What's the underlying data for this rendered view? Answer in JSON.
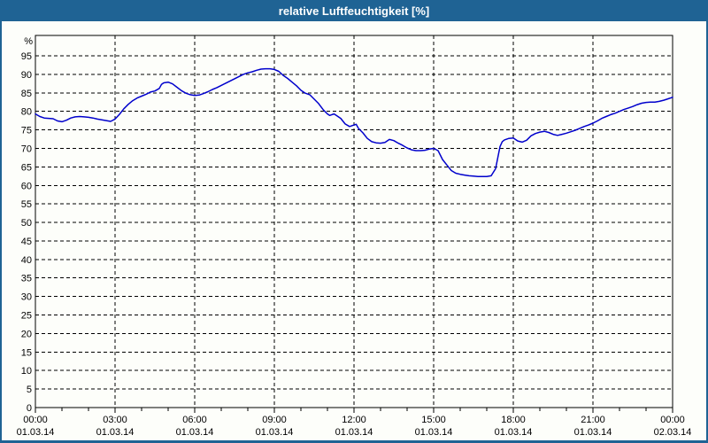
{
  "window": {
    "title": "relative Luftfeuchtigkeit [%]",
    "titlebar_color": "#1f6394",
    "border_color": "#1f6394",
    "background_color": "#fdfefa",
    "title_text_color": "#ffffff"
  },
  "chart_data": {
    "type": "line",
    "title": "relative Luftfeuchtigkeit [%]",
    "ylabel": "%",
    "xlabel": "",
    "ylim": [
      0,
      100.5
    ],
    "y_ticks": [
      0,
      5,
      10,
      15,
      20,
      25,
      30,
      35,
      40,
      45,
      50,
      55,
      60,
      65,
      70,
      75,
      80,
      85,
      90,
      95
    ],
    "grid": "dashed",
    "legend": "none",
    "line_color": "#0000cc",
    "grid_color": "#000000",
    "x_range_minutes": [
      0,
      1440
    ],
    "x_minor_tick_minutes": 60,
    "x_ticks": [
      {
        "minutes": 0,
        "time": "00:00",
        "date": "01.03.14"
      },
      {
        "minutes": 180,
        "time": "03:00",
        "date": "01.03.14"
      },
      {
        "minutes": 360,
        "time": "06:00",
        "date": "01.03.14"
      },
      {
        "minutes": 540,
        "time": "09:00",
        "date": "01.03.14"
      },
      {
        "minutes": 720,
        "time": "12:00",
        "date": "01.03.14"
      },
      {
        "minutes": 900,
        "time": "15:00",
        "date": "01.03.14"
      },
      {
        "minutes": 1080,
        "time": "18:00",
        "date": "01.03.14"
      },
      {
        "minutes": 1260,
        "time": "21:00",
        "date": "01.03.14"
      },
      {
        "minutes": 1440,
        "time": "00:00",
        "date": "02.03.14"
      }
    ],
    "series": [
      {
        "name": "relative Luftfeuchtigkeit [%]",
        "points": [
          [
            0,
            79.3
          ],
          [
            10,
            78.6
          ],
          [
            20,
            78.2
          ],
          [
            30,
            78.1
          ],
          [
            40,
            78.0
          ],
          [
            50,
            77.4
          ],
          [
            60,
            77.2
          ],
          [
            70,
            77.6
          ],
          [
            80,
            78.2
          ],
          [
            90,
            78.5
          ],
          [
            100,
            78.6
          ],
          [
            110,
            78.5
          ],
          [
            120,
            78.4
          ],
          [
            130,
            78.2
          ],
          [
            140,
            77.9
          ],
          [
            150,
            77.7
          ],
          [
            160,
            77.5
          ],
          [
            170,
            77.3
          ],
          [
            180,
            77.9
          ],
          [
            190,
            79.2
          ],
          [
            200,
            80.7
          ],
          [
            210,
            81.9
          ],
          [
            220,
            82.9
          ],
          [
            230,
            83.6
          ],
          [
            240,
            84.1
          ],
          [
            250,
            84.6
          ],
          [
            260,
            85.2
          ],
          [
            270,
            85.5
          ],
          [
            280,
            86.2
          ],
          [
            285,
            87.3
          ],
          [
            290,
            87.7
          ],
          [
            300,
            87.9
          ],
          [
            310,
            87.4
          ],
          [
            320,
            86.5
          ],
          [
            330,
            85.6
          ],
          [
            340,
            84.9
          ],
          [
            350,
            84.5
          ],
          [
            360,
            84.3
          ],
          [
            370,
            84.4
          ],
          [
            380,
            84.8
          ],
          [
            390,
            85.3
          ],
          [
            400,
            85.9
          ],
          [
            410,
            86.4
          ],
          [
            420,
            87.0
          ],
          [
            430,
            87.6
          ],
          [
            440,
            88.2
          ],
          [
            450,
            88.8
          ],
          [
            460,
            89.4
          ],
          [
            470,
            90.0
          ],
          [
            480,
            90.4
          ],
          [
            490,
            90.7
          ],
          [
            500,
            91.1
          ],
          [
            510,
            91.4
          ],
          [
            520,
            91.5
          ],
          [
            530,
            91.5
          ],
          [
            540,
            91.3
          ],
          [
            550,
            90.8
          ],
          [
            560,
            89.7
          ],
          [
            570,
            88.9
          ],
          [
            580,
            87.9
          ],
          [
            590,
            86.9
          ],
          [
            600,
            85.7
          ],
          [
            610,
            84.9
          ],
          [
            620,
            84.5
          ],
          [
            630,
            83.3
          ],
          [
            640,
            82.1
          ],
          [
            650,
            80.5
          ],
          [
            660,
            79.3
          ],
          [
            665,
            78.9
          ],
          [
            670,
            79.1
          ],
          [
            675,
            79.3
          ],
          [
            680,
            78.9
          ],
          [
            690,
            78.1
          ],
          [
            700,
            76.6
          ],
          [
            710,
            75.9
          ],
          [
            720,
            76.3
          ],
          [
            725,
            76.5
          ],
          [
            730,
            75.4
          ],
          [
            740,
            74.2
          ],
          [
            750,
            72.7
          ],
          [
            760,
            71.8
          ],
          [
            770,
            71.5
          ],
          [
            780,
            71.4
          ],
          [
            790,
            71.6
          ],
          [
            800,
            72.4
          ],
          [
            810,
            72.1
          ],
          [
            820,
            71.4
          ],
          [
            830,
            70.8
          ],
          [
            840,
            70.1
          ],
          [
            850,
            69.6
          ],
          [
            860,
            69.4
          ],
          [
            870,
            69.4
          ],
          [
            880,
            69.5
          ],
          [
            890,
            69.8
          ],
          [
            900,
            70.0
          ],
          [
            910,
            69.4
          ],
          [
            920,
            67.0
          ],
          [
            930,
            65.5
          ],
          [
            940,
            64.0
          ],
          [
            950,
            63.3
          ],
          [
            960,
            63.0
          ],
          [
            970,
            62.8
          ],
          [
            980,
            62.6
          ],
          [
            990,
            62.5
          ],
          [
            1000,
            62.4
          ],
          [
            1010,
            62.4
          ],
          [
            1020,
            62.4
          ],
          [
            1030,
            62.6
          ],
          [
            1040,
            64.5
          ],
          [
            1045,
            67.5
          ],
          [
            1050,
            70.5
          ],
          [
            1055,
            71.8
          ],
          [
            1060,
            72.3
          ],
          [
            1070,
            72.7
          ],
          [
            1080,
            72.8
          ],
          [
            1090,
            72.0
          ],
          [
            1100,
            71.7
          ],
          [
            1110,
            72.2
          ],
          [
            1120,
            73.4
          ],
          [
            1130,
            74.0
          ],
          [
            1140,
            74.4
          ],
          [
            1150,
            74.6
          ],
          [
            1160,
            74.3
          ],
          [
            1170,
            73.8
          ],
          [
            1180,
            73.5
          ],
          [
            1190,
            73.8
          ],
          [
            1200,
            74.1
          ],
          [
            1210,
            74.5
          ],
          [
            1220,
            74.9
          ],
          [
            1230,
            75.4
          ],
          [
            1240,
            75.9
          ],
          [
            1250,
            76.3
          ],
          [
            1260,
            76.8
          ],
          [
            1270,
            77.4
          ],
          [
            1280,
            78.1
          ],
          [
            1290,
            78.6
          ],
          [
            1300,
            79.1
          ],
          [
            1310,
            79.5
          ],
          [
            1320,
            80.0
          ],
          [
            1330,
            80.5
          ],
          [
            1340,
            80.9
          ],
          [
            1350,
            81.3
          ],
          [
            1360,
            81.8
          ],
          [
            1370,
            82.2
          ],
          [
            1380,
            82.4
          ],
          [
            1390,
            82.5
          ],
          [
            1400,
            82.5
          ],
          [
            1410,
            82.7
          ],
          [
            1420,
            83.0
          ],
          [
            1430,
            83.4
          ],
          [
            1440,
            83.8
          ]
        ]
      }
    ]
  }
}
